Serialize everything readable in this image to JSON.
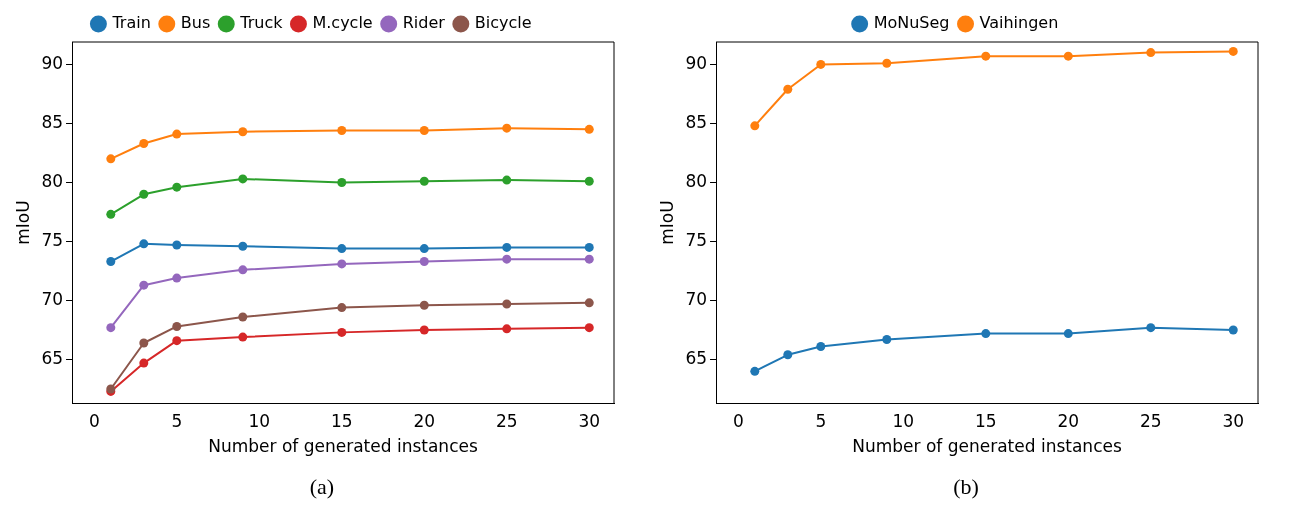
{
  "chart_data": [
    {
      "type": "line",
      "xlabel": "Number of generated instances",
      "ylabel": "mIoU",
      "x": [
        1,
        3,
        5,
        9,
        15,
        20,
        25,
        30
      ],
      "xlim": [
        -1.35,
        31.5
      ],
      "xticks": [
        0,
        5,
        10,
        15,
        20,
        25,
        30
      ],
      "ylim": [
        61.3,
        91.9
      ],
      "yticks": [
        65,
        70,
        75,
        80,
        85,
        90
      ],
      "grid": false,
      "legend": "top",
      "marker": "circle",
      "line_style": "solid",
      "annotations": [
        "(a)"
      ],
      "series": [
        {
          "name": "Train",
          "color": "#1f77b4",
          "values": [
            73.3,
            74.8,
            74.7,
            74.6,
            74.4,
            74.4,
            74.5,
            74.5
          ]
        },
        {
          "name": "Bus",
          "color": "#ff7f0e",
          "values": [
            82.0,
            83.3,
            84.1,
            84.3,
            84.4,
            84.4,
            84.6,
            84.5
          ]
        },
        {
          "name": "Truck",
          "color": "#2ca02c",
          "values": [
            77.3,
            79.0,
            79.6,
            80.3,
            80.0,
            80.1,
            80.2,
            80.1
          ]
        },
        {
          "name": "M.cycle",
          "color": "#d62728",
          "values": [
            62.3,
            64.7,
            66.6,
            66.9,
            67.3,
            67.5,
            67.6,
            67.7
          ]
        },
        {
          "name": "Rider",
          "color": "#9467bd",
          "values": [
            67.7,
            71.3,
            71.9,
            72.6,
            73.1,
            73.3,
            73.5,
            73.5
          ]
        },
        {
          "name": "Bicycle",
          "color": "#8c564b",
          "values": [
            62.5,
            66.4,
            67.8,
            68.6,
            69.4,
            69.6,
            69.7,
            69.8
          ]
        }
      ]
    },
    {
      "type": "line",
      "xlabel": "Number of generated instances",
      "ylabel": "mIoU",
      "x": [
        1,
        3,
        5,
        9,
        15,
        20,
        25,
        30
      ],
      "xlim": [
        -1.35,
        31.5
      ],
      "xticks": [
        0,
        5,
        10,
        15,
        20,
        25,
        30
      ],
      "ylim": [
        61.3,
        91.9
      ],
      "yticks": [
        65,
        70,
        75,
        80,
        85,
        90
      ],
      "grid": false,
      "legend": "top",
      "marker": "circle",
      "line_style": "solid",
      "annotations": [
        "(b)"
      ],
      "series": [
        {
          "name": "MoNuSeg",
          "color": "#1f77b4",
          "values": [
            64.0,
            65.4,
            66.1,
            66.7,
            67.2,
            67.2,
            67.7,
            67.5
          ]
        },
        {
          "name": "Vaihingen",
          "color": "#ff7f0e",
          "values": [
            84.8,
            87.9,
            90.0,
            90.1,
            90.7,
            90.7,
            91.0,
            91.1
          ]
        }
      ]
    }
  ]
}
